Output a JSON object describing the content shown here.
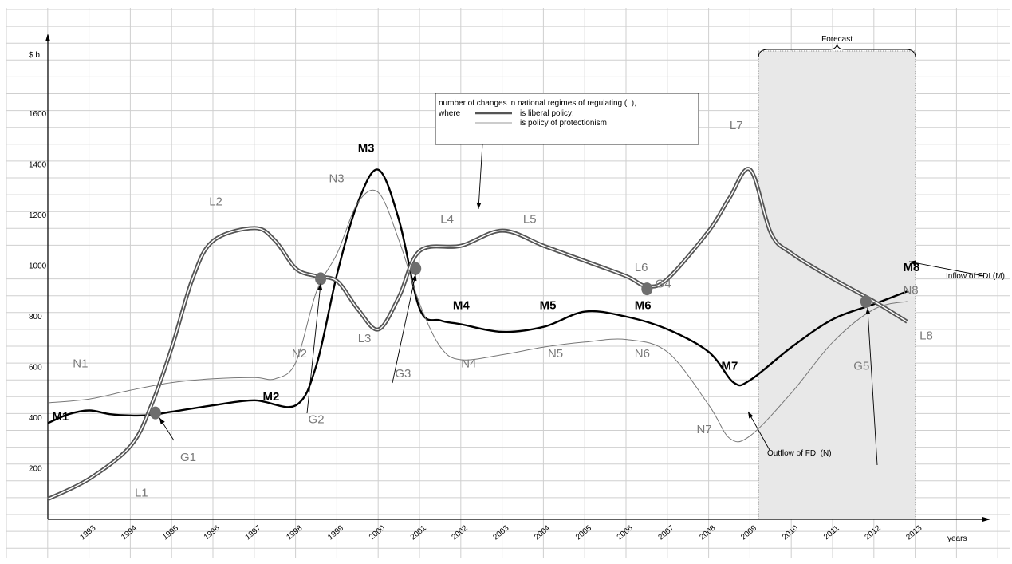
{
  "chart_data": {
    "type": "line",
    "ylabel": "$ b.",
    "xlabel": "years",
    "y_ticks": [
      200,
      400,
      600,
      800,
      1000,
      1200,
      1400,
      1600
    ],
    "x_ticks": [
      "1993",
      "1994",
      "1995",
      "1996",
      "1997",
      "1998",
      "1999",
      "2000",
      "2001",
      "2002",
      "2003",
      "2004",
      "2005",
      "2006",
      "2007",
      "2008",
      "2009",
      "2010",
      "2011",
      "2012",
      "2013"
    ],
    "xlim": [
      1992,
      2013.5
    ],
    "ylim": [
      0,
      1900
    ],
    "forecast": {
      "label": "Forecast",
      "start": 2009.2,
      "end": 2013
    },
    "legend": {
      "title": "number of changes in national regimes of regulating (L),",
      "where": "where",
      "liberal": "is liberal policy;",
      "protection": "is policy of protectionism"
    },
    "series": [
      {
        "name": "Inflow of FDI (M)",
        "style": "dark",
        "points": [
          [
            1992,
            380
          ],
          [
            1992.5,
            415
          ],
          [
            1993,
            430
          ],
          [
            1993.5,
            415
          ],
          [
            1994,
            410
          ],
          [
            1994.5,
            412
          ],
          [
            1995,
            425
          ],
          [
            1996,
            450
          ],
          [
            1997,
            470
          ],
          [
            1998,
            450
          ],
          [
            1998.5,
            610
          ],
          [
            1999,
            970
          ],
          [
            1999.5,
            1250
          ],
          [
            2000,
            1380
          ],
          [
            2000.5,
            1180
          ],
          [
            2001,
            830
          ],
          [
            2001.5,
            785
          ],
          [
            2002,
            770
          ],
          [
            2003,
            740
          ],
          [
            2004,
            760
          ],
          [
            2005,
            820
          ],
          [
            2006,
            800
          ],
          [
            2007,
            750
          ],
          [
            2008,
            660
          ],
          [
            2008.6,
            540
          ],
          [
            2009,
            550
          ],
          [
            2010,
            680
          ],
          [
            2011,
            790
          ],
          [
            2012,
            850
          ],
          [
            2012.8,
            900
          ]
        ]
      },
      {
        "name": "number of changes in national regimes of regulating (L)",
        "style": "liberal",
        "points": [
          [
            1992,
            80
          ],
          [
            1993,
            160
          ],
          [
            1994,
            290
          ],
          [
            1994.5,
            450
          ],
          [
            1995,
            680
          ],
          [
            1995.5,
            950
          ],
          [
            1996,
            1100
          ],
          [
            1997,
            1150
          ],
          [
            1997.5,
            1100
          ],
          [
            1998,
            990
          ],
          [
            1998.5,
            960
          ],
          [
            1999,
            940
          ],
          [
            1999.5,
            830
          ],
          [
            2000,
            750
          ],
          [
            2000.5,
            880
          ],
          [
            2001,
            1060
          ],
          [
            2002,
            1080
          ],
          [
            2003,
            1140
          ],
          [
            2004,
            1080
          ],
          [
            2005,
            1020
          ],
          [
            2006,
            960
          ],
          [
            2006.5,
            920
          ],
          [
            2007,
            950
          ],
          [
            2008,
            1140
          ],
          [
            2008.5,
            1270
          ],
          [
            2009,
            1380
          ],
          [
            2009.5,
            1130
          ],
          [
            2010,
            1050
          ],
          [
            2011,
            950
          ],
          [
            2012,
            860
          ],
          [
            2012.8,
            780
          ]
        ]
      },
      {
        "name": "Outflow of FDI (N)",
        "style": "thin",
        "points": [
          [
            1992,
            460
          ],
          [
            1993,
            475
          ],
          [
            1994,
            510
          ],
          [
            1995,
            540
          ],
          [
            1996,
            555
          ],
          [
            1997,
            560
          ],
          [
            1997.5,
            555
          ],
          [
            1998,
            620
          ],
          [
            1998.5,
            900
          ],
          [
            1999,
            1050
          ],
          [
            1999.5,
            1250
          ],
          [
            2000,
            1290
          ],
          [
            2000.5,
            1100
          ],
          [
            2001,
            850
          ],
          [
            2001.5,
            680
          ],
          [
            2002,
            630
          ],
          [
            2003,
            650
          ],
          [
            2004,
            680
          ],
          [
            2005,
            700
          ],
          [
            2006,
            710
          ],
          [
            2007,
            660
          ],
          [
            2008,
            450
          ],
          [
            2008.5,
            320
          ],
          [
            2009,
            330
          ],
          [
            2010,
            500
          ],
          [
            2011,
            700
          ],
          [
            2012,
            830
          ],
          [
            2012.8,
            860
          ]
        ]
      }
    ],
    "point_labels": [
      {
        "text": "M1",
        "x": 1992.1,
        "y": 390,
        "style": "dark"
      },
      {
        "text": "M2",
        "x": 1997.2,
        "y": 470,
        "style": "dark"
      },
      {
        "text": "M3",
        "x": 1999.5,
        "y": 1450,
        "style": "dark"
      },
      {
        "text": "M4",
        "x": 2001.8,
        "y": 830,
        "style": "dark"
      },
      {
        "text": "M5",
        "x": 2003.9,
        "y": 830,
        "style": "dark"
      },
      {
        "text": "M6",
        "x": 2006.2,
        "y": 830,
        "style": "dark"
      },
      {
        "text": "M7",
        "x": 2008.3,
        "y": 590,
        "style": "dark"
      },
      {
        "text": "M8",
        "x": 2012.7,
        "y": 980,
        "style": "dark"
      },
      {
        "text": "L1",
        "x": 1994.1,
        "y": 90,
        "style": "gray"
      },
      {
        "text": "L2",
        "x": 1995.9,
        "y": 1240,
        "style": "gray"
      },
      {
        "text": "L3",
        "x": 1999.5,
        "y": 700,
        "style": "gray"
      },
      {
        "text": "L4",
        "x": 2001.5,
        "y": 1170,
        "style": "gray"
      },
      {
        "text": "L5",
        "x": 2003.5,
        "y": 1170,
        "style": "gray"
      },
      {
        "text": "L6",
        "x": 2006.2,
        "y": 980,
        "style": "gray"
      },
      {
        "text": "L7",
        "x": 2008.5,
        "y": 1540,
        "style": "gray"
      },
      {
        "text": "L8",
        "x": 2013.1,
        "y": 710,
        "style": "gray"
      },
      {
        "text": "N1",
        "x": 1992.6,
        "y": 600,
        "style": "gray"
      },
      {
        "text": "N2",
        "x": 1997.9,
        "y": 640,
        "style": "gray"
      },
      {
        "text": "N3",
        "x": 1998.8,
        "y": 1330,
        "style": "gray"
      },
      {
        "text": "N4",
        "x": 2002.0,
        "y": 600,
        "style": "gray"
      },
      {
        "text": "N5",
        "x": 2004.1,
        "y": 640,
        "style": "gray"
      },
      {
        "text": "N6",
        "x": 2006.2,
        "y": 640,
        "style": "gray"
      },
      {
        "text": "N7",
        "x": 2007.7,
        "y": 340,
        "style": "gray"
      },
      {
        "text": "N8",
        "x": 2012.7,
        "y": 890,
        "style": "gray"
      },
      {
        "text": "G1",
        "x": 1995.2,
        "y": 230,
        "style": "gray"
      },
      {
        "text": "G2",
        "x": 1998.3,
        "y": 380,
        "style": "gray"
      },
      {
        "text": "G3",
        "x": 2000.4,
        "y": 560,
        "style": "gray"
      },
      {
        "text": "G4",
        "x": 2006.7,
        "y": 915,
        "style": "gray"
      },
      {
        "text": "G5",
        "x": 2011.5,
        "y": 590,
        "style": "gray"
      }
    ],
    "intersections": [
      {
        "name": "G1",
        "x": 1994.6,
        "y": 420
      },
      {
        "name": "G2",
        "x": 1998.6,
        "y": 950
      },
      {
        "name": "G3",
        "x": 2000.9,
        "y": 990
      },
      {
        "name": "G4",
        "x": 2006.5,
        "y": 910
      },
      {
        "name": "G5",
        "x": 2011.8,
        "y": 860
      }
    ],
    "annotations": {
      "inflow": "Inflow of FDI (M)",
      "outflow": "Outflow of FDI (N)"
    }
  }
}
